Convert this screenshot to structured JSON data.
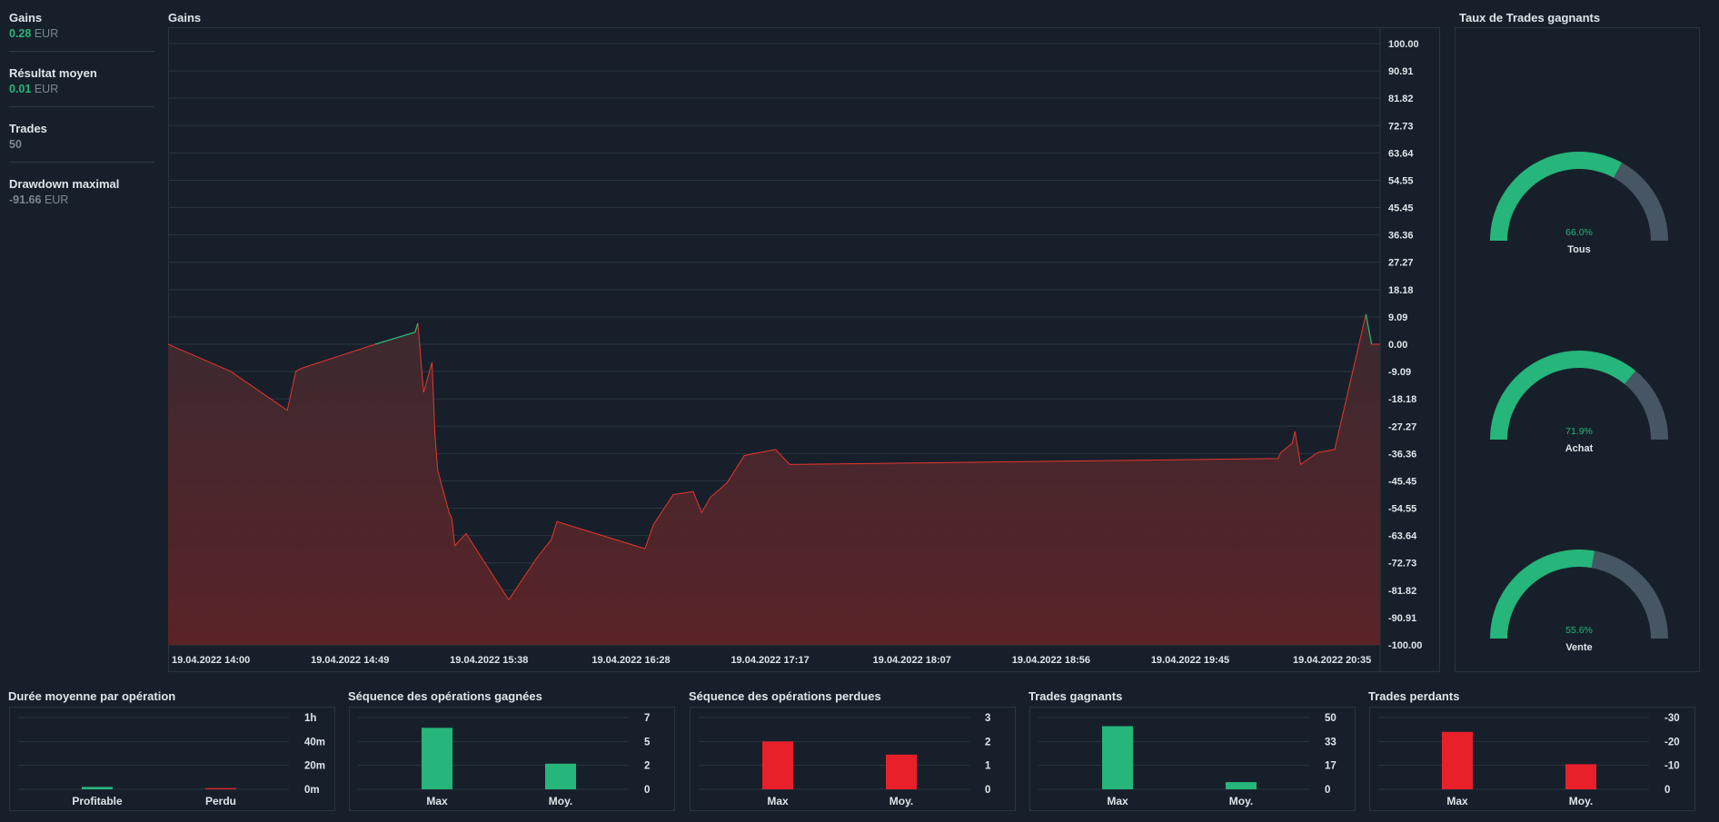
{
  "stats": [
    {
      "label": "Gains",
      "value": "0.28",
      "unit": "EUR",
      "color": "#26b57a"
    },
    {
      "label": "Résultat moyen",
      "value": "0.01",
      "unit": "EUR",
      "color": "#26b57a"
    },
    {
      "label": "Trades",
      "value": "50",
      "unit": "",
      "color": "#7b8794"
    },
    {
      "label": "Drawdown maximal",
      "value": "-91.66",
      "unit": "EUR",
      "color": "#7b8794"
    }
  ],
  "colors": {
    "profit": "#26b57a",
    "loss": "#e8202a",
    "gauge_rest": "#465663",
    "grid": "#2a3540",
    "text": "#dfe4ea"
  },
  "main_chart": {
    "title": "Gains",
    "y_ticks": [
      "100.00",
      "90.91",
      "81.82",
      "72.73",
      "63.64",
      "54.55",
      "45.45",
      "36.36",
      "27.27",
      "18.18",
      "9.09",
      "0.00",
      "-9.09",
      "-18.18",
      "-27.27",
      "-36.36",
      "-45.45",
      "-54.55",
      "-63.64",
      "-72.73",
      "-81.82",
      "-90.91",
      "-100.00"
    ],
    "x_ticks": [
      "19.04.2022 14:00",
      "19.04.2022 14:49",
      "19.04.2022 15:38",
      "19.04.2022 16:28",
      "19.04.2022 17:17",
      "19.04.2022 18:07",
      "19.04.2022 18:56",
      "19.04.2022 19:45",
      "19.04.2022 20:35"
    ]
  },
  "win_rate": {
    "title": "Taux de Trades gagnants",
    "gauges": [
      {
        "label": "Tous",
        "text": "66.0%",
        "value": 0.66
      },
      {
        "label": "Achat",
        "text": "71.9%",
        "value": 0.719
      },
      {
        "label": "Vente",
        "text": "55.6%",
        "value": 0.556
      }
    ]
  },
  "duration_chart": {
    "title": "Durée moyenne par opération",
    "y_ticks": [
      "1h",
      "40m",
      "20m",
      "0m"
    ],
    "categories": [
      "Profitable",
      "Perdu"
    ]
  },
  "win_seq_chart": {
    "title": "Séquence des opérations gagnées",
    "y_ticks": [
      "7",
      "5",
      "2",
      "0"
    ],
    "categories": [
      "Max",
      "Moy."
    ]
  },
  "loss_seq_chart": {
    "title": "Séquence des opérations perdues",
    "y_ticks": [
      "3",
      "2",
      "1",
      "0"
    ],
    "categories": [
      "Max",
      "Moy."
    ]
  },
  "win_trades_chart": {
    "title": "Trades gagnants",
    "y_ticks": [
      "50",
      "33",
      "17",
      "0"
    ],
    "categories": [
      "Max",
      "Moy."
    ]
  },
  "loss_trades_chart": {
    "title": "Trades perdants",
    "y_ticks": [
      "-30",
      "-20",
      "-10",
      "0"
    ],
    "categories": [
      "Max",
      "Moy."
    ]
  },
  "chart_data": [
    {
      "type": "area",
      "title": "Gains",
      "ylim": [
        -100,
        100
      ],
      "x_tick_labels": [
        "19.04.2022 14:00",
        "19.04.2022 14:49",
        "19.04.2022 15:38",
        "19.04.2022 16:28",
        "19.04.2022 17:17",
        "19.04.2022 18:07",
        "19.04.2022 18:56",
        "19.04.2022 19:45",
        "19.04.2022 20:35"
      ],
      "x_range": [
        "19.04.2022 14:00",
        "19.04.2022 21:07"
      ],
      "grid": true,
      "points": [
        [
          "19.04.2022 14:00",
          0
        ],
        [
          "19.04.2022 14:22",
          -9
        ],
        [
          "19.04.2022 14:42",
          -22
        ],
        [
          "19.04.2022 14:45",
          -9
        ],
        [
          "19.04.2022 14:47",
          -8
        ],
        [
          "19.04.2022 15:13",
          0
        ],
        [
          "19.04.2022 15:27",
          4
        ],
        [
          "19.04.2022 15:28",
          7
        ],
        [
          "19.04.2022 15:30",
          -16
        ],
        [
          "19.04.2022 15:33",
          -6
        ],
        [
          "19.04.2022 15:34",
          -30
        ],
        [
          "19.04.2022 15:35",
          -42
        ],
        [
          "19.04.2022 15:39",
          -56
        ],
        [
          "19.04.2022 15:40",
          -58
        ],
        [
          "19.04.2022 15:41",
          -67
        ],
        [
          "19.04.2022 15:45",
          -63
        ],
        [
          "19.04.2022 16:00",
          -85
        ],
        [
          "19.04.2022 16:10",
          -71
        ],
        [
          "19.04.2022 16:15",
          -65
        ],
        [
          "19.04.2022 16:17",
          -59
        ],
        [
          "19.04.2022 16:48",
          -68
        ],
        [
          "19.04.2022 16:51",
          -60
        ],
        [
          "19.04.2022 16:58",
          -50
        ],
        [
          "19.04.2022 17:05",
          -49
        ],
        [
          "19.04.2022 17:08",
          -56
        ],
        [
          "19.04.2022 17:11",
          -51
        ],
        [
          "19.04.2022 17:17",
          -46
        ],
        [
          "19.04.2022 17:23",
          -37
        ],
        [
          "19.04.2022 17:34",
          -35
        ],
        [
          "19.04.2022 17:39",
          -40
        ],
        [
          "19.04.2022 20:31",
          -38
        ],
        [
          "19.04.2022 20:32",
          -36
        ],
        [
          "19.04.2022 20:36",
          -33
        ],
        [
          "19.04.2022 20:37",
          -29
        ],
        [
          "19.04.2022 20:39",
          -40
        ],
        [
          "19.04.2022 20:45",
          -36
        ],
        [
          "19.04.2022 20:51",
          -35
        ],
        [
          "19.04.2022 21:02",
          10
        ],
        [
          "19.04.2022 21:04",
          0
        ],
        [
          "19.04.2022 21:07",
          0
        ]
      ],
      "positive_bands": [
        [
          "19.04.2022 15:13",
          "19.04.2022 15:29"
        ],
        [
          "19.04.2022 21:01",
          "19.04.2022 21:07"
        ]
      ]
    },
    {
      "type": "bar",
      "title": "Durée moyenne par opération",
      "categories": [
        "Profitable",
        "Perdu"
      ],
      "values": [
        2,
        1
      ],
      "unit": "min",
      "ylim": [
        0,
        60
      ],
      "colors": [
        "#26b57a",
        "#e8202a"
      ]
    },
    {
      "type": "bar",
      "title": "Séquence des opérations gagnées",
      "categories": [
        "Max",
        "Moy."
      ],
      "values": [
        6,
        2.5
      ],
      "ylim": [
        0,
        7
      ],
      "colors": [
        "#26b57a",
        "#26b57a"
      ]
    },
    {
      "type": "bar",
      "title": "Séquence des opérations perdues",
      "categories": [
        "Max",
        "Moy."
      ],
      "values": [
        2,
        1.45
      ],
      "ylim": [
        0,
        3
      ],
      "colors": [
        "#e8202a",
        "#e8202a"
      ]
    },
    {
      "type": "bar",
      "title": "Trades gagnants",
      "categories": [
        "Max",
        "Moy."
      ],
      "values": [
        44,
        5
      ],
      "ylim": [
        0,
        50
      ],
      "colors": [
        "#26b57a",
        "#26b57a"
      ]
    },
    {
      "type": "bar",
      "title": "Trades perdants",
      "categories": [
        "Max",
        "Moy."
      ],
      "values": [
        -24,
        -10.5
      ],
      "ylim": [
        -30,
        0
      ],
      "colors": [
        "#e8202a",
        "#e8202a"
      ]
    }
  ]
}
